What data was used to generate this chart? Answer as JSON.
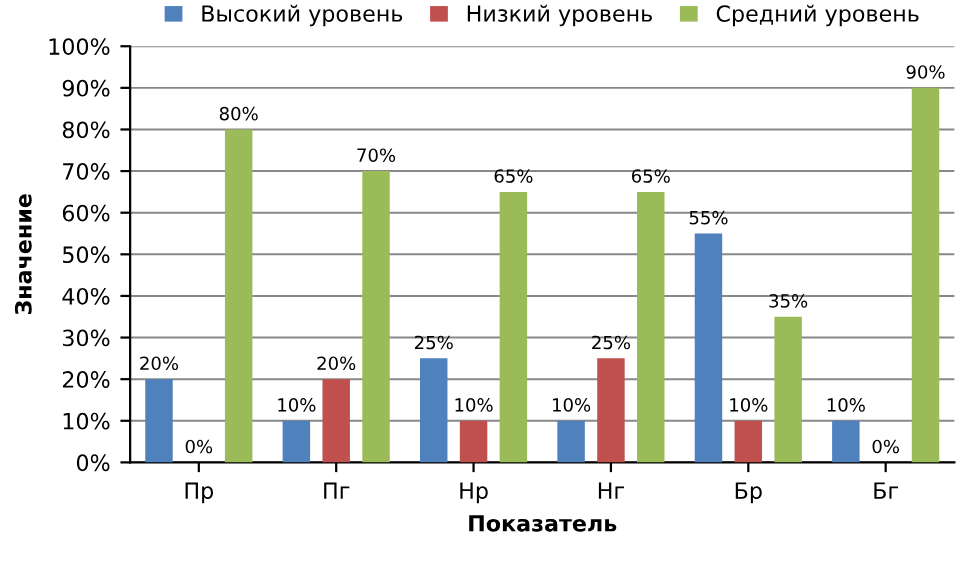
{
  "chart_data": {
    "type": "bar",
    "xlabel": "Показатель",
    "ylabel": "Значение",
    "categories": [
      "Пр",
      "Пг",
      "Нр",
      "Нг",
      "Бр",
      "Бг"
    ],
    "series": [
      {
        "name": "Высокий уровень",
        "color": "#4f81bd",
        "values": [
          20,
          10,
          25,
          10,
          55,
          10
        ],
        "value_labels": [
          "20%",
          "10%",
          "25%",
          "10%",
          "55%",
          "10%"
        ]
      },
      {
        "name": "Низкий уровень",
        "color": "#c0504d",
        "values": [
          0,
          20,
          10,
          25,
          10,
          0
        ],
        "value_labels": [
          "0%",
          "20%",
          "10%",
          "25%",
          "10%",
          "0%"
        ]
      },
      {
        "name": "Средний уровень",
        "color": "#9bbb59",
        "values": [
          80,
          70,
          65,
          65,
          35,
          90
        ],
        "value_labels": [
          "80%",
          "70%",
          "65%",
          "65%",
          "35%",
          "90%"
        ]
      }
    ],
    "ylim": [
      0,
      100
    ],
    "yticks": [
      {
        "value": 0,
        "label": "0%"
      },
      {
        "value": 10,
        "label": "10%"
      },
      {
        "value": 20,
        "label": "20%"
      },
      {
        "value": 30,
        "label": "30%"
      },
      {
        "value": 40,
        "label": "40%"
      },
      {
        "value": 50,
        "label": "50%"
      },
      {
        "value": 60,
        "label": "60%"
      },
      {
        "value": 70,
        "label": "70%"
      },
      {
        "value": 80,
        "label": "80%"
      },
      {
        "value": 90,
        "label": "90%"
      },
      {
        "value": 100,
        "label": "100%"
      }
    ],
    "grid": "y",
    "legend": "top"
  }
}
